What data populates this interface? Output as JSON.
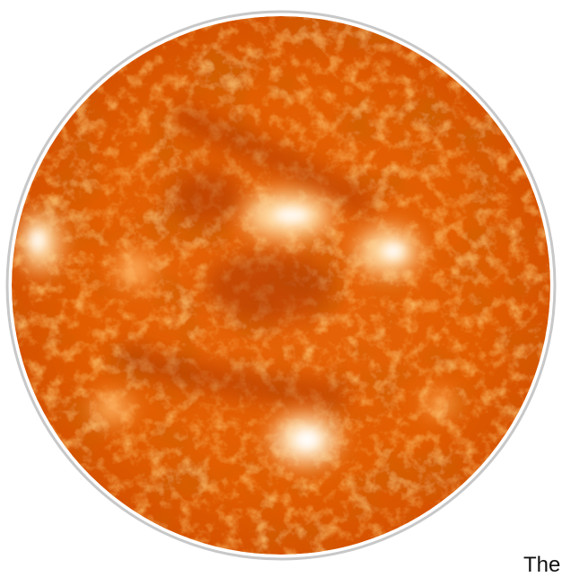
{
  "caption": {
    "text": "The"
  }
}
